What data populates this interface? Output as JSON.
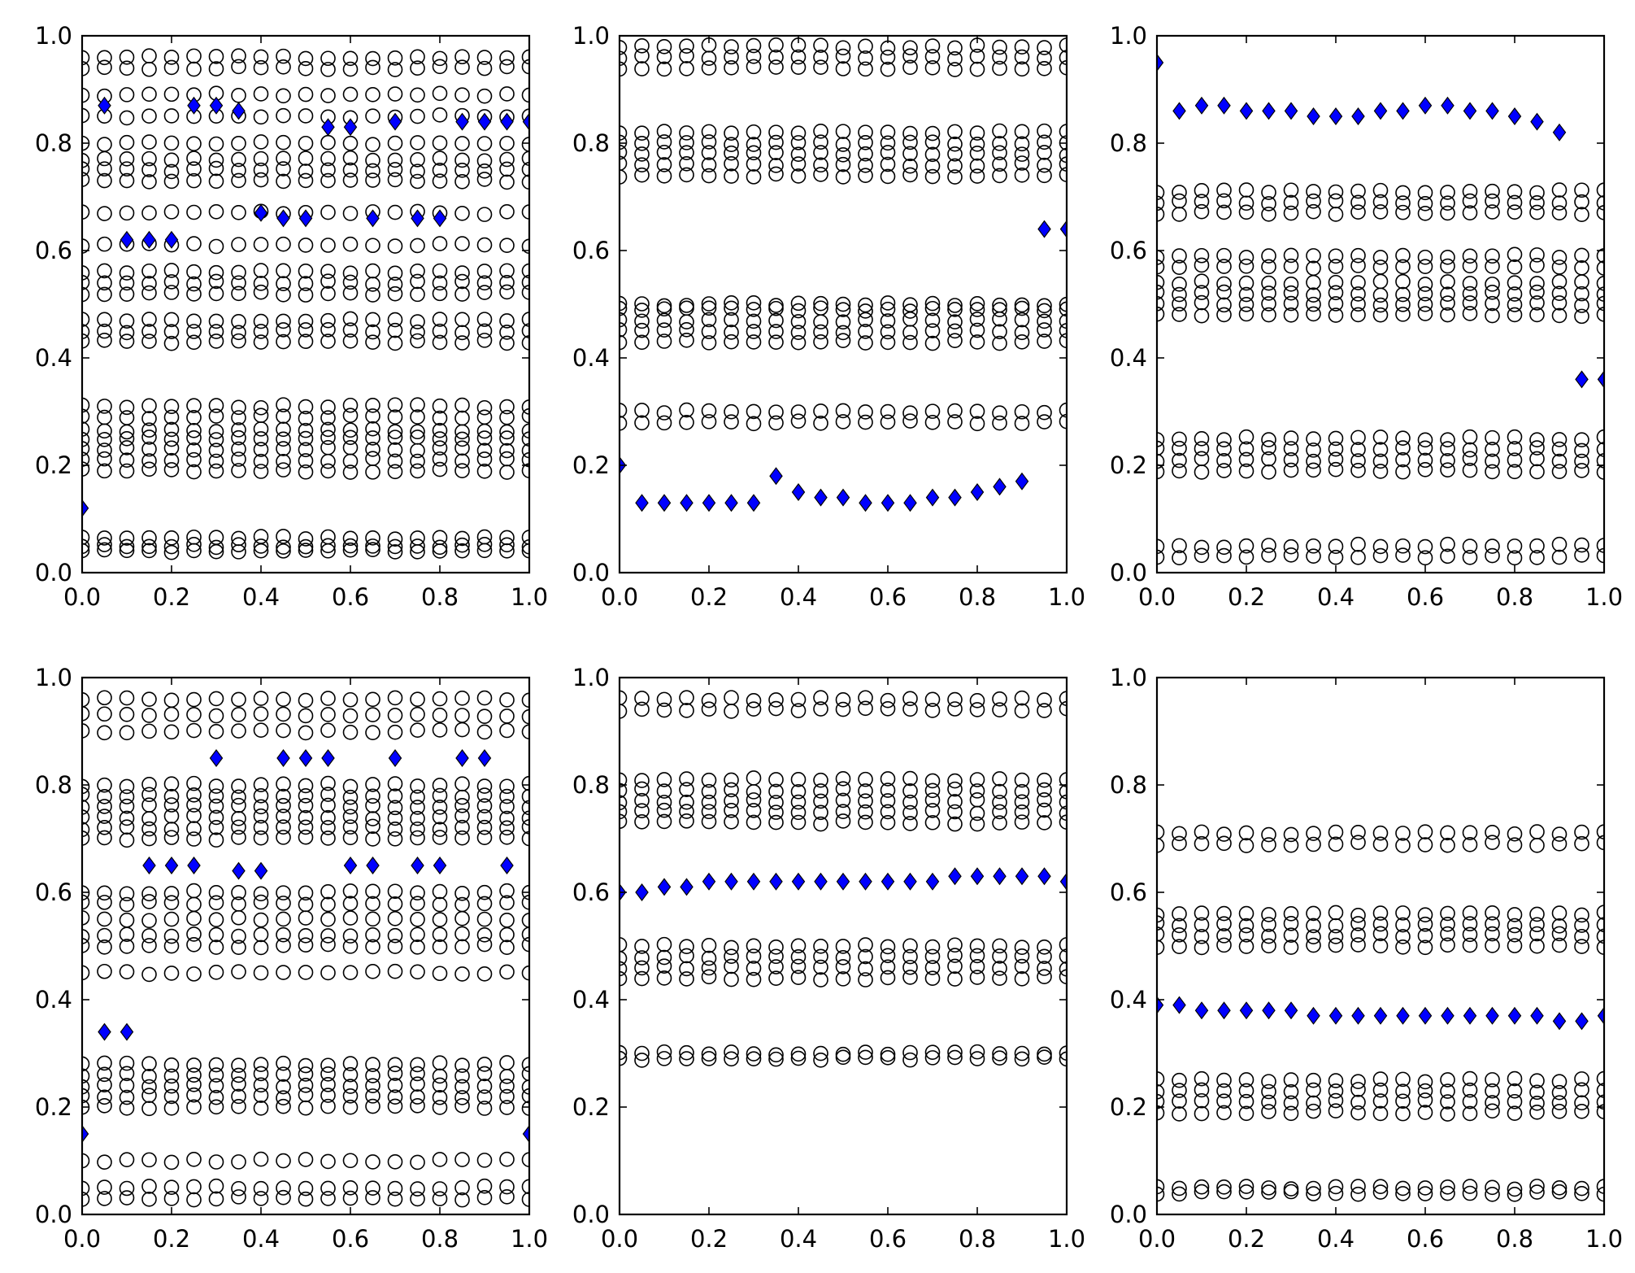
{
  "figure": {
    "background": "#ffffff",
    "circle_marker": {
      "shape": "open-circle",
      "edge_color": "#000000",
      "face_color": "none"
    },
    "highlight_marker": {
      "shape": "diamond",
      "face_color": "#0000ff",
      "edge_color": "#000000"
    }
  },
  "chart_data": [
    {
      "type": "scatter",
      "title": "",
      "xlabel": "",
      "ylabel": "",
      "xlim": [
        0,
        1
      ],
      "ylim": [
        0,
        1
      ],
      "grid": false,
      "xticks": [
        0.0,
        0.2,
        0.4,
        0.6,
        0.8,
        1.0
      ],
      "yticks": [
        0.0,
        0.2,
        0.4,
        0.6,
        0.8,
        1.0
      ],
      "xtick_labels": [
        "0.0",
        "0.2",
        "0.4",
        "0.6",
        "0.8",
        "1.0"
      ],
      "ytick_labels": [
        "0.0",
        "0.2",
        "0.4",
        "0.6",
        "0.8",
        "1.0"
      ],
      "x": [
        0.0,
        0.05,
        0.1,
        0.15,
        0.2,
        0.25,
        0.3,
        0.35,
        0.4,
        0.45,
        0.5,
        0.55,
        0.6,
        0.65,
        0.7,
        0.75,
        0.8,
        0.85,
        0.9,
        0.95,
        1.0
      ],
      "circle_bands": [
        0.04,
        0.05,
        0.065,
        0.19,
        0.21,
        0.23,
        0.25,
        0.265,
        0.29,
        0.31,
        0.43,
        0.45,
        0.47,
        0.52,
        0.54,
        0.56,
        0.61,
        0.67,
        0.73,
        0.75,
        0.77,
        0.8,
        0.85,
        0.89,
        0.94,
        0.96
      ],
      "highlight": {
        "x": [
          0.0,
          0.05,
          0.1,
          0.15,
          0.2,
          0.25,
          0.3,
          0.35,
          0.4,
          0.45,
          0.5,
          0.55,
          0.6,
          0.65,
          0.7,
          0.75,
          0.8,
          0.85,
          0.9,
          0.95,
          1.0
        ],
        "y": [
          0.12,
          0.87,
          0.62,
          0.62,
          0.62,
          0.87,
          0.87,
          0.86,
          0.67,
          0.66,
          0.66,
          0.83,
          0.83,
          0.66,
          0.84,
          0.66,
          0.66,
          0.84,
          0.84,
          0.84,
          0.84
        ]
      }
    },
    {
      "type": "scatter",
      "title": "",
      "xlabel": "",
      "ylabel": "",
      "xlim": [
        0,
        1
      ],
      "ylim": [
        0,
        1
      ],
      "grid": false,
      "xticks": [
        0.0,
        0.2,
        0.4,
        0.6,
        0.8,
        1.0
      ],
      "yticks": [
        0.0,
        0.2,
        0.4,
        0.6,
        0.8,
        1.0
      ],
      "xtick_labels": [
        "0.0",
        "0.2",
        "0.4",
        "0.6",
        "0.8",
        "1.0"
      ],
      "ytick_labels": [
        "0.0",
        "0.2",
        "0.4",
        "0.6",
        "0.8",
        "1.0"
      ],
      "x": [
        0.0,
        0.05,
        0.1,
        0.15,
        0.2,
        0.25,
        0.3,
        0.35,
        0.4,
        0.45,
        0.5,
        0.55,
        0.6,
        0.65,
        0.7,
        0.75,
        0.8,
        0.85,
        0.9,
        0.95,
        1.0
      ],
      "circle_bands": [
        0.28,
        0.3,
        0.43,
        0.45,
        0.47,
        0.49,
        0.5,
        0.74,
        0.76,
        0.78,
        0.8,
        0.82,
        0.94,
        0.96,
        0.98
      ],
      "highlight": {
        "x": [
          0.0,
          0.05,
          0.1,
          0.15,
          0.2,
          0.25,
          0.3,
          0.35,
          0.4,
          0.45,
          0.5,
          0.55,
          0.6,
          0.65,
          0.7,
          0.75,
          0.8,
          0.85,
          0.9,
          0.95,
          1.0
        ],
        "y": [
          0.2,
          0.13,
          0.13,
          0.13,
          0.13,
          0.13,
          0.13,
          0.18,
          0.15,
          0.14,
          0.14,
          0.13,
          0.13,
          0.13,
          0.14,
          0.14,
          0.15,
          0.16,
          0.17,
          0.64,
          0.64
        ]
      }
    },
    {
      "type": "scatter",
      "title": "",
      "xlabel": "",
      "ylabel": "",
      "xlim": [
        0,
        1
      ],
      "ylim": [
        0,
        1
      ],
      "grid": false,
      "xticks": [
        0.0,
        0.2,
        0.4,
        0.6,
        0.8,
        1.0
      ],
      "yticks": [
        0.0,
        0.2,
        0.4,
        0.6,
        0.8,
        1.0
      ],
      "xtick_labels": [
        "0.0",
        "0.2",
        "0.4",
        "0.6",
        "0.8",
        "1.0"
      ],
      "ytick_labels": [
        "0.0",
        "0.2",
        "0.4",
        "0.6",
        "0.8",
        "1.0"
      ],
      "x": [
        0.0,
        0.05,
        0.1,
        0.15,
        0.2,
        0.25,
        0.3,
        0.35,
        0.4,
        0.45,
        0.5,
        0.55,
        0.6,
        0.65,
        0.7,
        0.75,
        0.8,
        0.85,
        0.9,
        0.95,
        1.0
      ],
      "circle_bands": [
        0.03,
        0.05,
        0.19,
        0.21,
        0.23,
        0.25,
        0.48,
        0.5,
        0.52,
        0.54,
        0.57,
        0.59,
        0.67,
        0.69,
        0.71
      ],
      "highlight": {
        "x": [
          0.0,
          0.05,
          0.1,
          0.15,
          0.2,
          0.25,
          0.3,
          0.35,
          0.4,
          0.45,
          0.5,
          0.55,
          0.6,
          0.65,
          0.7,
          0.75,
          0.8,
          0.85,
          0.9,
          0.95,
          1.0
        ],
        "y": [
          0.95,
          0.86,
          0.87,
          0.87,
          0.86,
          0.86,
          0.86,
          0.85,
          0.85,
          0.85,
          0.86,
          0.86,
          0.87,
          0.87,
          0.86,
          0.86,
          0.85,
          0.84,
          0.82,
          0.36,
          0.36
        ]
      }
    },
    {
      "type": "scatter",
      "title": "",
      "xlabel": "",
      "ylabel": "",
      "xlim": [
        0,
        1
      ],
      "ylim": [
        0,
        1
      ],
      "grid": false,
      "xticks": [
        0.0,
        0.2,
        0.4,
        0.6,
        0.8,
        1.0
      ],
      "yticks": [
        0.0,
        0.2,
        0.4,
        0.6,
        0.8,
        1.0
      ],
      "xtick_labels": [
        "0.0",
        "0.2",
        "0.4",
        "0.6",
        "0.8",
        "1.0"
      ],
      "ytick_labels": [
        "0.0",
        "0.2",
        "0.4",
        "0.6",
        "0.8",
        "1.0"
      ],
      "x": [
        0.0,
        0.05,
        0.1,
        0.15,
        0.2,
        0.25,
        0.3,
        0.35,
        0.4,
        0.45,
        0.5,
        0.55,
        0.6,
        0.65,
        0.7,
        0.75,
        0.8,
        0.85,
        0.9,
        0.95,
        1.0
      ],
      "circle_bands": [
        0.03,
        0.05,
        0.1,
        0.2,
        0.22,
        0.24,
        0.26,
        0.28,
        0.45,
        0.5,
        0.52,
        0.55,
        0.58,
        0.6,
        0.7,
        0.72,
        0.74,
        0.76,
        0.78,
        0.8,
        0.9,
        0.93,
        0.96
      ],
      "highlight": {
        "x": [
          0.0,
          0.05,
          0.1,
          0.15,
          0.2,
          0.25,
          0.3,
          0.35,
          0.4,
          0.45,
          0.5,
          0.55,
          0.6,
          0.65,
          0.7,
          0.75,
          0.8,
          0.85,
          0.9,
          0.95,
          1.0
        ],
        "y": [
          0.15,
          0.34,
          0.34,
          0.65,
          0.65,
          0.65,
          0.85,
          0.64,
          0.64,
          0.85,
          0.85,
          0.85,
          0.65,
          0.65,
          0.85,
          0.65,
          0.65,
          0.85,
          0.85,
          0.65,
          0.15
        ]
      }
    },
    {
      "type": "scatter",
      "title": "",
      "xlabel": "",
      "ylabel": "",
      "xlim": [
        0,
        1
      ],
      "ylim": [
        0,
        1
      ],
      "grid": false,
      "xticks": [
        0.0,
        0.2,
        0.4,
        0.6,
        0.8,
        1.0
      ],
      "yticks": [
        0.0,
        0.2,
        0.4,
        0.6,
        0.8,
        1.0
      ],
      "xtick_labels": [
        "0.0",
        "0.2",
        "0.4",
        "0.6",
        "0.8",
        "1.0"
      ],
      "ytick_labels": [
        "0.0",
        "0.2",
        "0.4",
        "0.6",
        "0.8",
        "1.0"
      ],
      "x": [
        0.0,
        0.05,
        0.1,
        0.15,
        0.2,
        0.25,
        0.3,
        0.35,
        0.4,
        0.45,
        0.5,
        0.55,
        0.6,
        0.65,
        0.7,
        0.75,
        0.8,
        0.85,
        0.9,
        0.95,
        1.0
      ],
      "circle_bands": [
        0.29,
        0.3,
        0.44,
        0.46,
        0.48,
        0.5,
        0.73,
        0.75,
        0.77,
        0.79,
        0.81,
        0.94,
        0.96
      ],
      "highlight": {
        "x": [
          0.0,
          0.05,
          0.1,
          0.15,
          0.2,
          0.25,
          0.3,
          0.35,
          0.4,
          0.45,
          0.5,
          0.55,
          0.6,
          0.65,
          0.7,
          0.75,
          0.8,
          0.85,
          0.9,
          0.95,
          1.0
        ],
        "y": [
          0.6,
          0.6,
          0.61,
          0.61,
          0.62,
          0.62,
          0.62,
          0.62,
          0.62,
          0.62,
          0.62,
          0.62,
          0.62,
          0.62,
          0.62,
          0.63,
          0.63,
          0.63,
          0.63,
          0.63,
          0.62
        ]
      }
    },
    {
      "type": "scatter",
      "title": "",
      "xlabel": "",
      "ylabel": "",
      "xlim": [
        0,
        1
      ],
      "ylim": [
        0,
        1
      ],
      "grid": false,
      "xticks": [
        0.0,
        0.2,
        0.4,
        0.6,
        0.8,
        1.0
      ],
      "yticks": [
        0.0,
        0.2,
        0.4,
        0.6,
        0.8,
        1.0
      ],
      "xtick_labels": [
        "0.0",
        "0.2",
        "0.4",
        "0.6",
        "0.8",
        "1.0"
      ],
      "ytick_labels": [
        "0.0",
        "0.2",
        "0.4",
        "0.6",
        "0.8",
        "1.0"
      ],
      "x": [
        0.0,
        0.05,
        0.1,
        0.15,
        0.2,
        0.25,
        0.3,
        0.35,
        0.4,
        0.45,
        0.5,
        0.55,
        0.6,
        0.65,
        0.7,
        0.75,
        0.8,
        0.85,
        0.9,
        0.95,
        1.0
      ],
      "circle_bands": [
        0.04,
        0.05,
        0.19,
        0.21,
        0.23,
        0.25,
        0.5,
        0.52,
        0.54,
        0.56,
        0.69,
        0.71
      ],
      "highlight": {
        "x": [
          0.0,
          0.05,
          0.1,
          0.15,
          0.2,
          0.25,
          0.3,
          0.35,
          0.4,
          0.45,
          0.5,
          0.55,
          0.6,
          0.65,
          0.7,
          0.75,
          0.8,
          0.85,
          0.9,
          0.95,
          1.0
        ],
        "y": [
          0.39,
          0.39,
          0.38,
          0.38,
          0.38,
          0.38,
          0.38,
          0.37,
          0.37,
          0.37,
          0.37,
          0.37,
          0.37,
          0.37,
          0.37,
          0.37,
          0.37,
          0.37,
          0.36,
          0.36,
          0.37
        ]
      }
    }
  ]
}
